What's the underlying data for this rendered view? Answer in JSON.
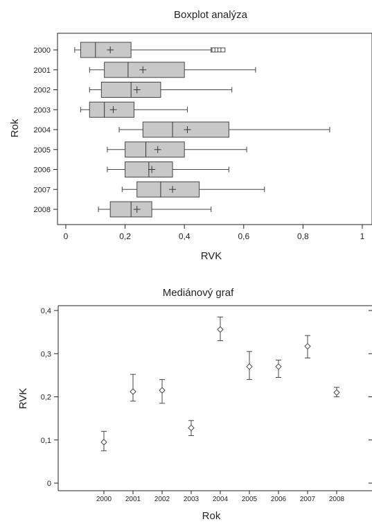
{
  "chart_data": [
    {
      "type": "boxplot",
      "title": "Boxplot analýza",
      "xlabel": "RVK",
      "ylabel": "Rok",
      "xlim": [
        0,
        1
      ],
      "x_ticks": [
        "0",
        "0,2",
        "0,4",
        "0,6",
        "0,8",
        "1"
      ],
      "x_tick_values": [
        0,
        0.2,
        0.4,
        0.6,
        0.8,
        1
      ],
      "orientation": "horizontal",
      "grid": false,
      "categories": [
        "2000",
        "2001",
        "2002",
        "2003",
        "2004",
        "2005",
        "2006",
        "2007",
        "2008"
      ],
      "boxes": [
        {
          "category": "2000",
          "whisker_low": 0.03,
          "q1": 0.05,
          "median": 0.1,
          "q3": 0.22,
          "whisker_high": 0.49,
          "mean": 0.15,
          "outliers": [
            0.5,
            0.51,
            0.52,
            0.53
          ]
        },
        {
          "category": "2001",
          "whisker_low": 0.08,
          "q1": 0.13,
          "median": 0.21,
          "q3": 0.4,
          "whisker_high": 0.64,
          "mean": 0.26,
          "outliers": []
        },
        {
          "category": "2002",
          "whisker_low": 0.08,
          "q1": 0.12,
          "median": 0.22,
          "q3": 0.32,
          "whisker_high": 0.56,
          "mean": 0.24,
          "outliers": []
        },
        {
          "category": "2003",
          "whisker_low": 0.05,
          "q1": 0.08,
          "median": 0.13,
          "q3": 0.23,
          "whisker_high": 0.41,
          "mean": 0.16,
          "outliers": []
        },
        {
          "category": "2004",
          "whisker_low": 0.18,
          "q1": 0.26,
          "median": 0.36,
          "q3": 0.55,
          "whisker_high": 0.89,
          "mean": 0.41,
          "outliers": []
        },
        {
          "category": "2005",
          "whisker_low": 0.14,
          "q1": 0.2,
          "median": 0.27,
          "q3": 0.4,
          "whisker_high": 0.61,
          "mean": 0.31,
          "outliers": []
        },
        {
          "category": "2006",
          "whisker_low": 0.14,
          "q1": 0.2,
          "median": 0.28,
          "q3": 0.36,
          "whisker_high": 0.55,
          "mean": 0.29,
          "outliers": []
        },
        {
          "category": "2007",
          "whisker_low": 0.19,
          "q1": 0.24,
          "median": 0.32,
          "q3": 0.45,
          "whisker_high": 0.67,
          "mean": 0.36,
          "outliers": []
        },
        {
          "category": "2008",
          "whisker_low": 0.11,
          "q1": 0.15,
          "median": 0.22,
          "q3": 0.29,
          "whisker_high": 0.49,
          "mean": 0.24,
          "outliers": []
        }
      ],
      "box_color": "#c8c8c8"
    },
    {
      "type": "scatter",
      "title": "Mediánový graf",
      "xlabel": "Rok",
      "ylabel": "RVK",
      "ylim": [
        0,
        0.4
      ],
      "y_ticks": [
        "0",
        "0,1",
        "0,2",
        "0,3",
        "0,4"
      ],
      "y_tick_values": [
        0,
        0.1,
        0.2,
        0.3,
        0.4
      ],
      "grid": false,
      "categories": [
        "2000",
        "2001",
        "2002",
        "2003",
        "2004",
        "2005",
        "2006",
        "2007",
        "2008"
      ],
      "points": [
        {
          "category": "2000",
          "median": 0.095,
          "low": 0.075,
          "high": 0.12
        },
        {
          "category": "2001",
          "median": 0.212,
          "low": 0.19,
          "high": 0.252
        },
        {
          "category": "2002",
          "median": 0.215,
          "low": 0.185,
          "high": 0.24
        },
        {
          "category": "2003",
          "median": 0.128,
          "low": 0.11,
          "high": 0.145
        },
        {
          "category": "2004",
          "median": 0.356,
          "low": 0.33,
          "high": 0.385
        },
        {
          "category": "2005",
          "median": 0.27,
          "low": 0.24,
          "high": 0.305
        },
        {
          "category": "2006",
          "median": 0.27,
          "low": 0.245,
          "high": 0.285
        },
        {
          "category": "2007",
          "median": 0.317,
          "low": 0.29,
          "high": 0.342
        },
        {
          "category": "2008",
          "median": 0.21,
          "low": 0.2,
          "high": 0.222
        }
      ]
    }
  ]
}
